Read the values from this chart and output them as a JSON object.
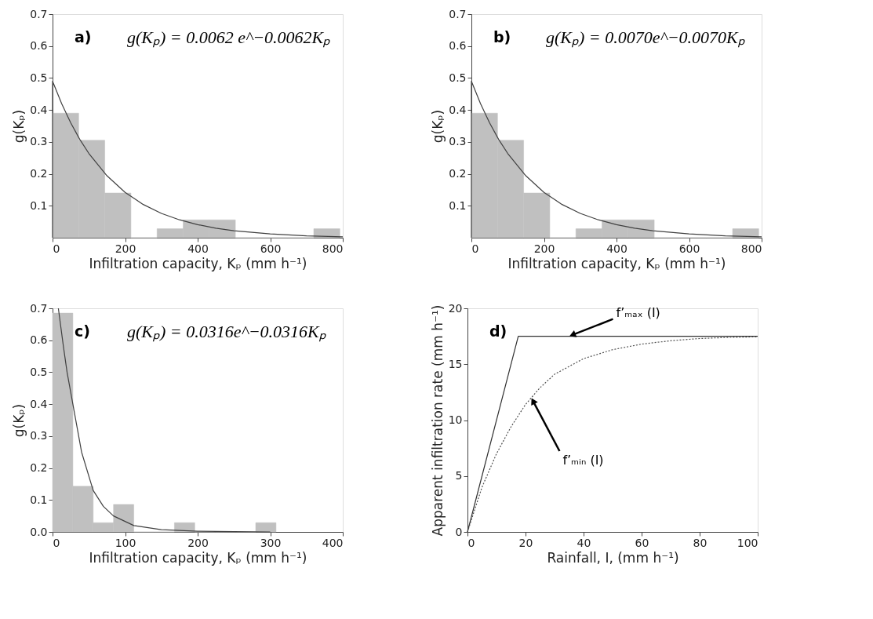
{
  "chart_data": [
    {
      "type": "histogram",
      "xlabel": "Infiltration capacity, Kₚ (mm h⁻¹)",
      "ylabel": "g(Kₚ)",
      "annotations": [
        "a)",
        "g(Kₚ) = 0.0062 e^−0.0062Kₚ"
      ],
      "xlim": [
        0,
        800
      ],
      "xticks": [
        0,
        200,
        400,
        600,
        800
      ],
      "ylim": [
        0,
        0.7
      ],
      "yticks": [
        0.1,
        0.2,
        0.3,
        0.4,
        0.5,
        0.6,
        0.7
      ],
      "grid": false,
      "series": [
        {
          "color": "#c0c0c0",
          "bins": [
            0,
            72,
            144,
            216,
            288,
            360,
            432,
            504,
            576,
            648,
            720,
            792
          ],
          "values": [
            0.39,
            0.305,
            0.14,
            0,
            0.028,
            0.056,
            0.056,
            0,
            0,
            0,
            0.028
          ]
        },
        {
          "type": "line",
          "color": "#404040",
          "line_style": "solid",
          "x": [
            0,
            0,
            25,
            50,
            75,
            100,
            150,
            200,
            250,
            300,
            350,
            400,
            450,
            500,
            600,
            700,
            800
          ],
          "values": [
            0,
            0.49,
            0.42,
            0.36,
            0.308,
            0.264,
            0.194,
            0.142,
            0.104,
            0.076,
            0.056,
            0.041,
            0.03,
            0.022,
            0.012,
            0.006,
            0.003
          ]
        }
      ]
    },
    {
      "type": "histogram",
      "xlabel": "Infiltration capacity, Kₚ (mm h⁻¹)",
      "ylabel": "g(Kₚ)",
      "annotations": [
        "b)",
        "g(Kₚ) = 0.0070e^−0.0070Kₚ"
      ],
      "xlim": [
        0,
        800
      ],
      "xticks": [
        0,
        200,
        400,
        600,
        800
      ],
      "ylim": [
        0,
        0.7
      ],
      "yticks": [
        0.1,
        0.2,
        0.3,
        0.4,
        0.5,
        0.6,
        0.7
      ],
      "grid": false,
      "series": [
        {
          "color": "#c0c0c0",
          "bins": [
            0,
            72,
            144,
            216,
            288,
            360,
            432,
            504,
            576,
            648,
            720,
            792
          ],
          "values": [
            0.39,
            0.305,
            0.14,
            0,
            0.028,
            0.056,
            0.056,
            0,
            0,
            0,
            0.028
          ]
        },
        {
          "type": "line",
          "color": "#404040",
          "line_style": "solid",
          "x": [
            0,
            0,
            25,
            50,
            75,
            100,
            150,
            200,
            250,
            300,
            350,
            400,
            450,
            500,
            600,
            700,
            800
          ],
          "values": [
            0,
            0.49,
            0.42,
            0.36,
            0.308,
            0.264,
            0.194,
            0.142,
            0.104,
            0.076,
            0.056,
            0.041,
            0.03,
            0.022,
            0.012,
            0.006,
            0.003
          ]
        }
      ]
    },
    {
      "type": "histogram",
      "xlabel": "Infiltration capacity, Kₚ (mm h⁻¹)",
      "ylabel": "g(Kₚ)",
      "annotations": [
        "c)",
        "g(Kₚ) = 0.0316e^−0.0316Kₚ"
      ],
      "xlim": [
        0,
        400
      ],
      "xticks": [
        0,
        100,
        200,
        300,
        400
      ],
      "ylim": [
        0,
        0.7
      ],
      "yticks": [
        {
          "value": 0,
          "label": "0.0"
        },
        0.1,
        0.2,
        0.3,
        0.4,
        0.5,
        0.6,
        0.7
      ],
      "grid": false,
      "series": [
        {
          "color": "#c0c0c0",
          "bins": [
            0,
            28,
            56,
            84,
            112,
            140,
            168,
            196,
            224,
            252,
            280,
            308
          ],
          "values": [
            0.685,
            0.143,
            0.029,
            0.086,
            0,
            0,
            0.029,
            0,
            0,
            0,
            0.029
          ]
        },
        {
          "type": "line",
          "color": "#404040",
          "line_style": "solid",
          "x": [
            8,
            15,
            20,
            28,
            40,
            56,
            70,
            84,
            112,
            150,
            200,
            250,
            300
          ],
          "values": [
            0.7,
            0.58,
            0.5,
            0.4,
            0.25,
            0.13,
            0.08,
            0.05,
            0.02,
            0.007,
            0.002,
            0.001,
            0
          ]
        }
      ]
    },
    {
      "type": "line",
      "xlabel": "Rainfall, I, (mm h⁻¹)",
      "ylabel": "Apparent infiltration rate (mm h⁻¹)",
      "annotations": [
        "d)",
        {
          "text": "f’ₘₐₓ (I)",
          "x": 35,
          "y": 17.5
        },
        {
          "text": "f’ₘᵢₙ (I)",
          "x": 22,
          "y": 12
        }
      ],
      "xlim": [
        0,
        100
      ],
      "xticks": [
        0,
        20,
        40,
        60,
        80,
        100
      ],
      "ylim": [
        0,
        20
      ],
      "yticks": [
        0,
        5,
        10,
        15,
        20
      ],
      "grid": false,
      "series": [
        {
          "color": "#303030",
          "line_style": "solid",
          "x": [
            0,
            17.5,
            100
          ],
          "values": [
            0,
            17.5,
            17.5
          ]
        },
        {
          "color": "#505050",
          "line_style": "dotted",
          "x": [
            0,
            5,
            10,
            15,
            20,
            25,
            30,
            40,
            50,
            60,
            70,
            80,
            90,
            100
          ],
          "values": [
            0,
            4.0,
            7.0,
            9.4,
            11.4,
            12.9,
            14.1,
            15.5,
            16.3,
            16.8,
            17.1,
            17.3,
            17.4,
            17.45
          ]
        }
      ]
    }
  ]
}
